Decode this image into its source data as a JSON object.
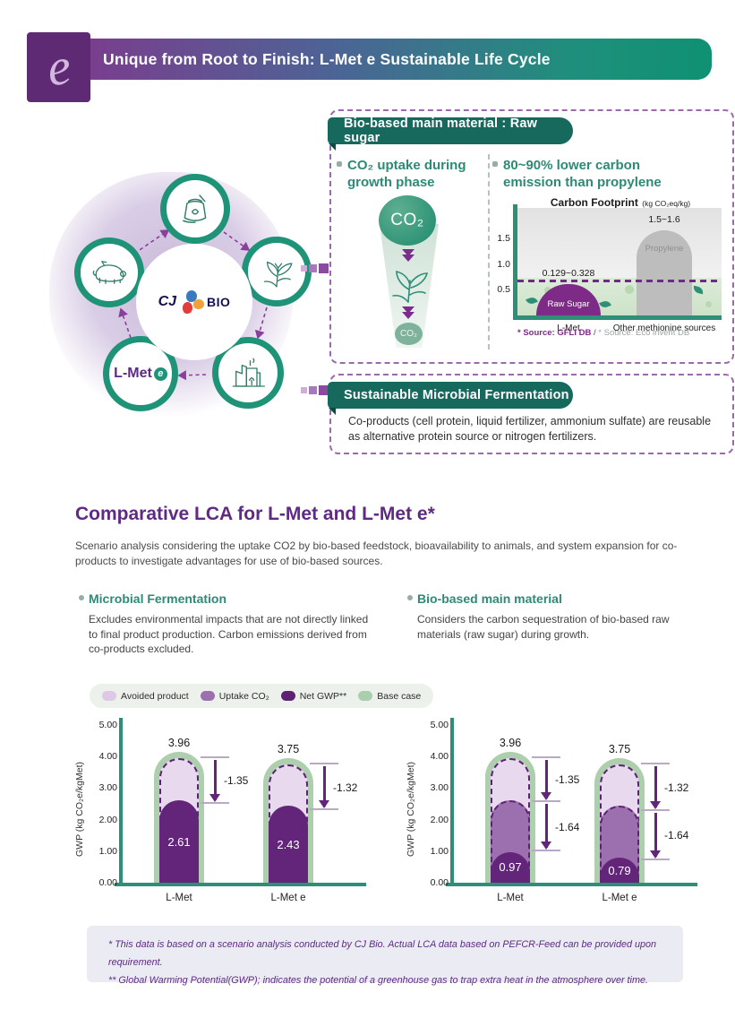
{
  "header": {
    "logo_letter": "e",
    "title": "Unique from Root to Finish: L-Met e Sustainable Life Cycle"
  },
  "cycle": {
    "logo_cj": "CJ",
    "logo_bio": "BIO",
    "lmet_label": "L-Met",
    "lmet_e": "e"
  },
  "bio_box": {
    "banner": "Bio-based main material : Raw sugar",
    "left": {
      "heading_line1": "CO₂ uptake during",
      "heading_line2": "growth phase",
      "big_co2": "CO₂",
      "small_co2": "CO₂"
    },
    "right": {
      "heading_line1": "80~90% lower carbon",
      "heading_line2": "emission than propylene"
    }
  },
  "ferment_box": {
    "banner": "Sustainable Microbial Fermentation",
    "body": "Co-products (cell protein, liquid fertilizer, ammonium sulfate) are reusable as alternative protein source or nitrogen fertilizers."
  },
  "lca": {
    "title": "Comparative LCA for L-Met and L-Met e*",
    "intro": "Scenario analysis considering the uptake CO2 by bio-based feedstock, bioavailability to animals, and system expansion for co-products to investigate advantages for use of bio-based sources.",
    "col_left": {
      "heading": "Microbial Fermentation",
      "body": "Excludes environmental impacts that are not directly linked to final product production. Carbon emissions derived from co-products excluded."
    },
    "col_right": {
      "heading": "Bio-based main material",
      "body": "Considers the carbon sequestration of bio-based raw materials (raw sugar) during growth."
    },
    "legend": [
      {
        "label": "Avoided product",
        "color": "#ddc8e6"
      },
      {
        "label": "Uptake CO₂",
        "color": "#9c6fae"
      },
      {
        "label": "Net GWP**",
        "color": "#5c2273"
      },
      {
        "label": "Base case",
        "color": "#a9cfad"
      }
    ]
  },
  "footnotes": {
    "line1": "*  This data is based on a scenario analysis conducted by CJ Bio. Actual LCA data based on PEFCR-Feed can be provided upon requirement.",
    "line2": "** Global Warming Potential(GWP); indicates the potential of a greenhouse gas to trap extra heat in the atmosphere over time."
  },
  "chart_data": [
    {
      "id": "carbon-footprint",
      "type": "bar",
      "title": "Carbon Footprint",
      "title_unit": "(kg CO₂eq/kg)",
      "ylim": [
        0,
        2.1
      ],
      "yticks": [
        1.5,
        1.0,
        0.5
      ],
      "dashed_line_y": 0.65,
      "categories": [
        "L-Met",
        "Other methionine sources"
      ],
      "bars": [
        {
          "name": "Raw Sugar",
          "value_label": "0.129~0.328",
          "display_top": 0.62,
          "color": "#7e2b87",
          "label_color": "#ffffff"
        },
        {
          "name": "Propylene",
          "value_label": "1.5~1.6",
          "display_top": 1.67,
          "color": "#bdbdbd",
          "label_color": "#8f8f8f"
        }
      ],
      "source_left": "* Source: GFLI DB",
      "source_divider": " / ",
      "source_right": "* Source: Eco invent DB"
    },
    {
      "id": "gwp-microbial-fermentation",
      "type": "bar",
      "ylabel": "GWP (kg CO₂e/kgMet)",
      "ylim": [
        0,
        5
      ],
      "yticks": [
        "5.00",
        "4.00",
        "3.00",
        "2.00",
        "1.00",
        "0.00"
      ],
      "categories": [
        "L-Met",
        "L-Met e"
      ],
      "bars": [
        {
          "category": "L-Met",
          "total": 3.96,
          "net_gwp": 2.61,
          "arrows": [
            {
              "label": "-1.35",
              "from": 3.96,
              "to": 2.5
            }
          ]
        },
        {
          "category": "L-Met e",
          "total": 3.75,
          "net_gwp": 2.43,
          "arrows": [
            {
              "label": "-1.32",
              "from": 3.75,
              "to": 2.3
            }
          ]
        }
      ]
    },
    {
      "id": "gwp-bio-based",
      "type": "bar",
      "ylabel": "GWP (kg CO₂e/kgMet)",
      "ylim": [
        0,
        5
      ],
      "yticks": [
        "5.00",
        "4.00",
        "3.00",
        "2.00",
        "1.00",
        "0.00"
      ],
      "categories": [
        "L-Met",
        "L-Met e"
      ],
      "bars": [
        {
          "category": "L-Met",
          "total": 3.96,
          "uptake_co2_top": 2.61,
          "net_gwp": 0.97,
          "arrows": [
            {
              "label": "-1.35",
              "from": 3.96,
              "to": 2.55
            },
            {
              "label": "-1.64",
              "from": 2.55,
              "to": 1.0
            }
          ]
        },
        {
          "category": "L-Met e",
          "total": 3.75,
          "uptake_co2_top": 2.43,
          "net_gwp": 0.79,
          "arrows": [
            {
              "label": "-1.32",
              "from": 3.75,
              "to": 2.28
            },
            {
              "label": "-1.64",
              "from": 2.28,
              "to": 0.72
            }
          ]
        }
      ]
    }
  ]
}
